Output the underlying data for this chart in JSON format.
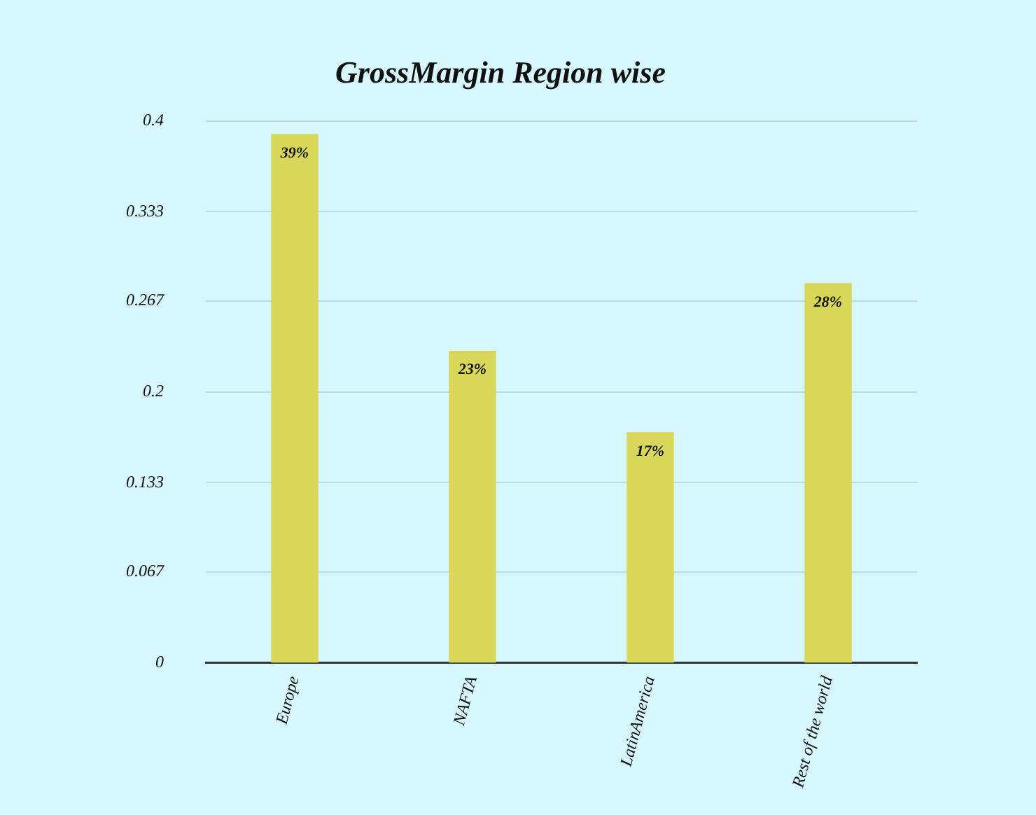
{
  "chart_data": {
    "type": "bar",
    "title": "GrossMargin Region wise",
    "categories": [
      "Europe",
      "NAFTA",
      "LatinAmerica",
      "Rest of the world"
    ],
    "values": [
      0.39,
      0.23,
      0.17,
      0.28
    ],
    "value_labels": [
      "39%",
      "23%",
      "17%",
      "28%"
    ],
    "color": "#d8d75a",
    "ylim": [
      0,
      0.4
    ],
    "yticks": [
      0,
      0.067,
      0.133,
      0.2,
      0.267,
      0.333,
      0.4
    ],
    "grid": "y",
    "legend": false
  }
}
